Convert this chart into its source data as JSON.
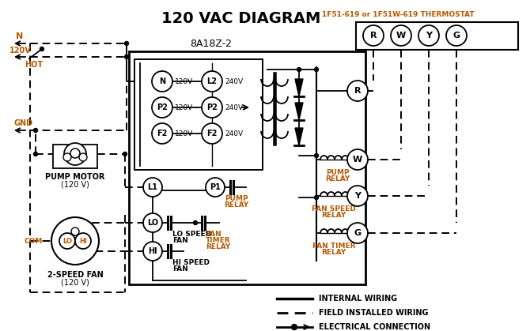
{
  "title": "120 VAC DIAGRAM",
  "title_color": "#000000",
  "title_fontsize": 14,
  "bg_color": "#ffffff",
  "line_color": "#000000",
  "orange_color": "#b35900",
  "thermostat_label": "1F51-619 or 1F51W-619 THERMOSTAT",
  "control_box_label": "8A18Z-2",
  "fig_w": 6.7,
  "fig_h": 4.19,
  "dpi": 100
}
